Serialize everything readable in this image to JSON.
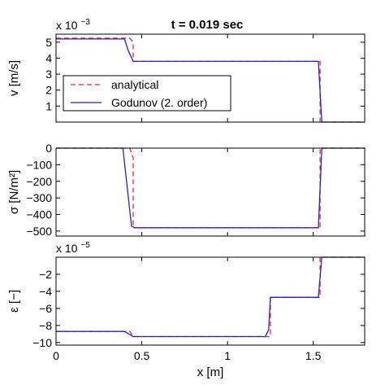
{
  "figure": {
    "title": "t = 0.019 sec"
  },
  "colors": {
    "analytical": "#ff2020",
    "godunov": "#1f1fe6",
    "axis": "#000000"
  },
  "chart_data": [
    {
      "type": "line",
      "id": "velocity",
      "ylabel": "v [m/s]",
      "exponent_base": "x 10",
      "exponent_power": "−3",
      "xlim": [
        0,
        1.8
      ],
      "ylim": [
        0,
        0.0055
      ],
      "yticks": [
        0.001,
        0.002,
        0.003,
        0.004,
        0.005
      ],
      "ytick_labels": [
        "1",
        "2",
        "3",
        "4",
        "5"
      ],
      "xticks": [],
      "xtick_labels": [],
      "legend": {
        "placement": "left",
        "entries": [
          "analytical",
          "Godunov (2. order)"
        ]
      },
      "series": [
        {
          "name": "analytical",
          "style": "dashed",
          "x": [
            0,
            0.43,
            0.45,
            0.45,
            1.54,
            1.54,
            1.8
          ],
          "y": [
            0.00525,
            0.00525,
            0.005,
            0.0038,
            0.0038,
            0.0,
            0.0
          ]
        },
        {
          "name": "Godunov (2. order)",
          "style": "solid",
          "x": [
            0,
            0.4,
            0.42,
            0.45,
            1.53,
            1.55,
            1.8
          ],
          "y": [
            0.0052,
            0.0052,
            0.0045,
            0.0038,
            0.0038,
            0.0,
            0.0
          ]
        }
      ]
    },
    {
      "type": "line",
      "id": "stress",
      "ylabel": "σ [N/m²]",
      "xlim": [
        0,
        1.8
      ],
      "ylim": [
        -530,
        0
      ],
      "yticks": [
        0,
        -100,
        -200,
        -300,
        -400,
        -500
      ],
      "ytick_labels": [
        "0",
        "−100",
        "−200",
        "−300",
        "−400",
        "−500"
      ],
      "xticks": [],
      "xtick_labels": [],
      "series": [
        {
          "name": "analytical",
          "style": "dashed",
          "x": [
            0,
            0.43,
            0.45,
            0.45,
            1.54,
            1.54,
            1.8
          ],
          "y": [
            0,
            0,
            -60,
            -480,
            -480,
            0,
            0
          ]
        },
        {
          "name": "Godunov (2. order)",
          "style": "solid",
          "x": [
            0,
            0.39,
            0.44,
            0.46,
            1.53,
            1.55,
            1.8
          ],
          "y": [
            0,
            0,
            -470,
            -480,
            -480,
            0,
            0
          ]
        }
      ]
    },
    {
      "type": "line",
      "id": "strain",
      "ylabel": "ε [−]",
      "exponent_base": "x 10",
      "exponent_power": "−5",
      "xlim": [
        0,
        1.8
      ],
      "ylim": [
        -10.3,
        0
      ],
      "yticks": [
        -2,
        -4,
        -6,
        -8,
        -10
      ],
      "ytick_labels": [
        "−2",
        "−4",
        "−6",
        "−8",
        "−10"
      ],
      "xticks": [
        0,
        0.5,
        1,
        1.5
      ],
      "xtick_labels": [
        "0",
        "0.5",
        "1",
        "1.5"
      ],
      "xlabel": "x [m]",
      "series": [
        {
          "name": "analytical",
          "style": "dashed",
          "x": [
            0,
            0.43,
            0.45,
            0.45,
            1.25,
            1.25,
            1.54,
            1.54,
            1.8
          ],
          "y": [
            -8.7,
            -8.7,
            -9.3,
            -9.3,
            -9.3,
            -4.7,
            -4.7,
            0,
            0
          ]
        },
        {
          "name": "Godunov (2. order)",
          "style": "solid",
          "x": [
            0,
            0.4,
            0.45,
            1.22,
            1.24,
            1.25,
            1.53,
            1.55,
            1.8
          ],
          "y": [
            -8.7,
            -8.7,
            -9.3,
            -9.3,
            -8.5,
            -4.7,
            -4.7,
            0,
            0
          ]
        }
      ]
    }
  ]
}
